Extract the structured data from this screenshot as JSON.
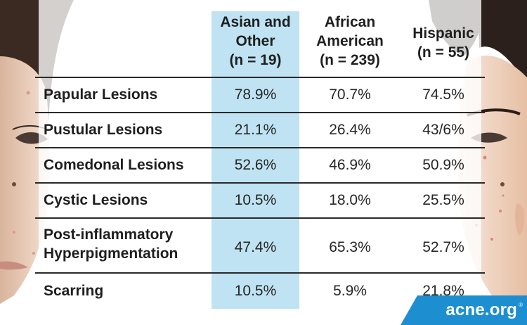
{
  "table": {
    "columns": [
      {
        "lines": [
          "Asian and",
          "Other",
          "(n = 19)"
        ]
      },
      {
        "lines": [
          "African",
          "American",
          "(n = 239)"
        ]
      },
      {
        "lines": [
          "Hispanic",
          "(n = 55)"
        ]
      }
    ],
    "rows": [
      {
        "label": [
          "Papular Lesions"
        ],
        "values": [
          "78.9%",
          "70.7%",
          "74.5%"
        ]
      },
      {
        "label": [
          "Pustular Lesions"
        ],
        "values": [
          "21.1%",
          "26.4%",
          "43/6%"
        ]
      },
      {
        "label": [
          "Comedonal Lesions"
        ],
        "values": [
          "52.6%",
          "46.9%",
          "50.9%"
        ]
      },
      {
        "label": [
          "Cystic Lesions"
        ],
        "values": [
          "10.5%",
          "18.0%",
          "25.5%"
        ]
      },
      {
        "label": [
          "Post-inflammatory",
          "Hyperpigmentation"
        ],
        "values": [
          "47.4%",
          "65.3%",
          "52.7%"
        ]
      },
      {
        "label": [
          "Scarring"
        ],
        "values": [
          "10.5%",
          "5.9%",
          "21.8%"
        ]
      }
    ]
  },
  "brand": {
    "text": "acne.org",
    "reg": "®"
  },
  "colors": {
    "highlight": "#bfe3f2",
    "brand_blue": "#1d8fd0",
    "rule": "#2a2a2a"
  },
  "icons": {
    "left_face": "illustrated-face-left",
    "right_face": "illustrated-face-right"
  }
}
